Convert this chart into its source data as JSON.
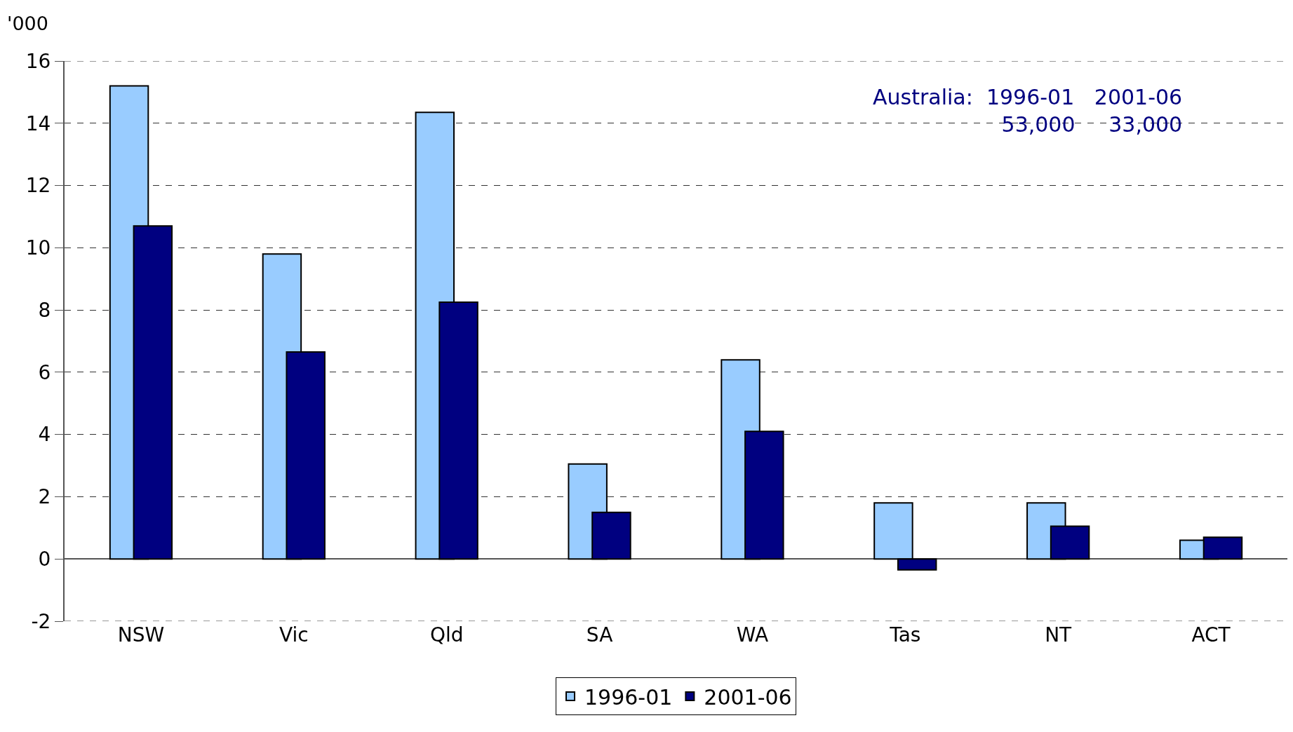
{
  "chart_data": {
    "type": "bar",
    "ylabel": "'000",
    "categories": [
      "NSW",
      "Vic",
      "Qld",
      "SA",
      "WA",
      "Tas",
      "NT",
      "ACT"
    ],
    "series": [
      {
        "name": "1996-01",
        "color": "#99ccff",
        "values": [
          15.2,
          9.8,
          14.35,
          3.05,
          6.4,
          1.8,
          1.8,
          0.6
        ]
      },
      {
        "name": "2001-06",
        "color": "#000080",
        "values": [
          10.7,
          6.65,
          8.25,
          1.5,
          4.1,
          -0.35,
          1.05,
          0.7
        ]
      }
    ],
    "ylim": [
      -2,
      16
    ],
    "yticks": [
      -2,
      0,
      2,
      4,
      6,
      8,
      10,
      12,
      14,
      16
    ],
    "grid": "y",
    "legend": "bottom",
    "annotations": [
      "Australia:  1996-01   2001-06\n53,000     33,000"
    ]
  }
}
